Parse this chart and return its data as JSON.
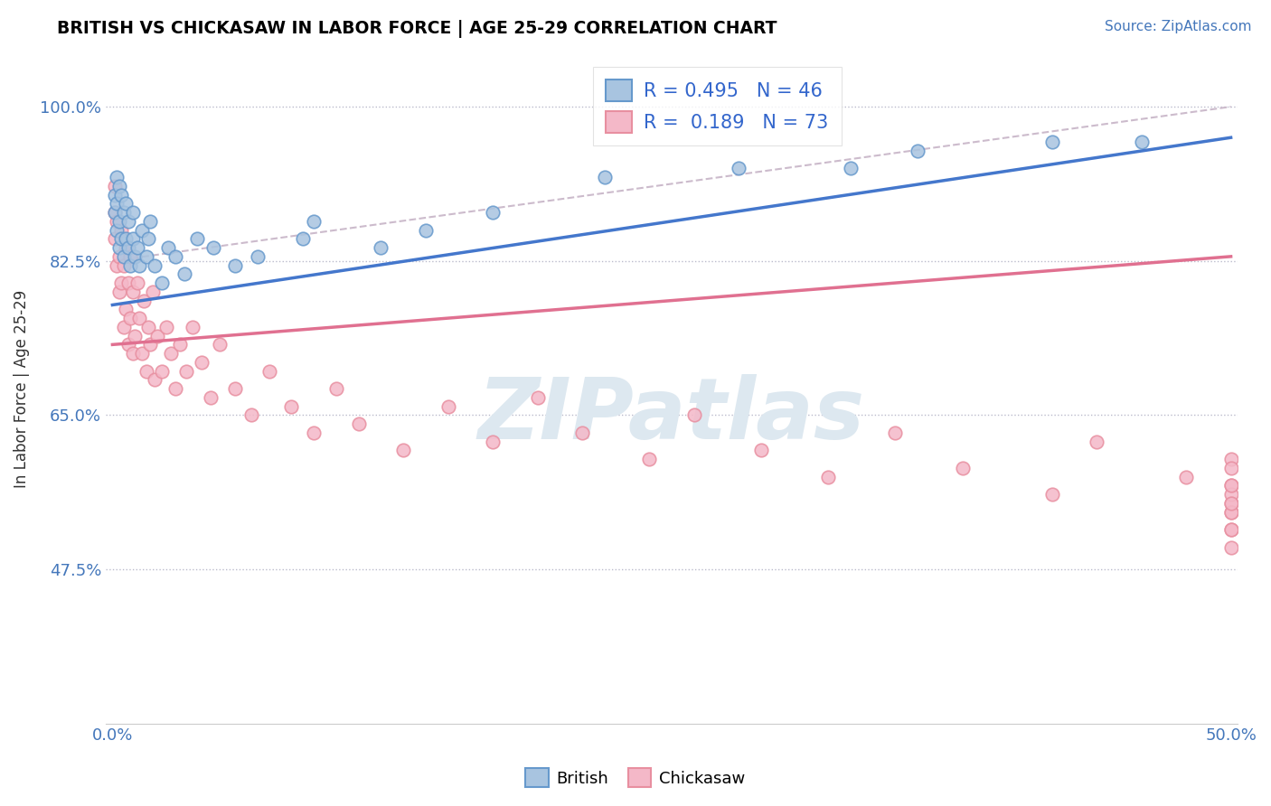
{
  "title": "BRITISH VS CHICKASAW IN LABOR FORCE | AGE 25-29 CORRELATION CHART",
  "source": "Source: ZipAtlas.com",
  "ylabel": "In Labor Force | Age 25-29",
  "british_R": 0.495,
  "british_N": 46,
  "chickasaw_R": 0.189,
  "chickasaw_N": 73,
  "blue_scatter_color": "#a8c4e0",
  "blue_edge_color": "#6699cc",
  "pink_scatter_color": "#f4b8c8",
  "pink_edge_color": "#e88fa0",
  "blue_line_color": "#4477cc",
  "pink_line_color": "#e07090",
  "diag_color": "#ccbbcc",
  "watermark": "ZIPatlas",
  "watermark_color": "#dde8f0",
  "xlim_low": -0.003,
  "xlim_high": 0.503,
  "ylim_low": 0.3,
  "ylim_high": 1.06,
  "y_ticks": [
    0.475,
    0.65,
    0.825,
    1.0
  ],
  "y_tick_labels": [
    "47.5%",
    "65.0%",
    "82.5%",
    "100.0%"
  ],
  "x_ticks": [
    0.0,
    0.1,
    0.2,
    0.3,
    0.4,
    0.5
  ],
  "x_tick_labels": [
    "0.0%",
    "",
    "",
    "",
    "",
    "50.0%"
  ],
  "british_x": [
    0.001,
    0.001,
    0.002,
    0.002,
    0.002,
    0.003,
    0.003,
    0.003,
    0.004,
    0.004,
    0.005,
    0.005,
    0.006,
    0.006,
    0.007,
    0.007,
    0.008,
    0.009,
    0.009,
    0.01,
    0.011,
    0.012,
    0.013,
    0.015,
    0.016,
    0.017,
    0.019,
    0.022,
    0.025,
    0.028,
    0.032,
    0.038,
    0.045,
    0.055,
    0.065,
    0.085,
    0.09,
    0.12,
    0.14,
    0.17,
    0.22,
    0.28,
    0.33,
    0.36,
    0.42,
    0.46
  ],
  "british_y": [
    0.88,
    0.9,
    0.86,
    0.89,
    0.92,
    0.84,
    0.87,
    0.91,
    0.85,
    0.9,
    0.83,
    0.88,
    0.85,
    0.89,
    0.84,
    0.87,
    0.82,
    0.85,
    0.88,
    0.83,
    0.84,
    0.82,
    0.86,
    0.83,
    0.85,
    0.87,
    0.82,
    0.8,
    0.84,
    0.83,
    0.81,
    0.85,
    0.84,
    0.82,
    0.83,
    0.85,
    0.87,
    0.84,
    0.86,
    0.88,
    0.92,
    0.93,
    0.93,
    0.95,
    0.96,
    0.96
  ],
  "chickasaw_x": [
    0.001,
    0.001,
    0.001,
    0.002,
    0.002,
    0.003,
    0.003,
    0.004,
    0.004,
    0.005,
    0.005,
    0.006,
    0.006,
    0.007,
    0.007,
    0.008,
    0.008,
    0.009,
    0.009,
    0.01,
    0.011,
    0.012,
    0.013,
    0.014,
    0.015,
    0.016,
    0.017,
    0.018,
    0.019,
    0.02,
    0.022,
    0.024,
    0.026,
    0.028,
    0.03,
    0.033,
    0.036,
    0.04,
    0.044,
    0.048,
    0.055,
    0.062,
    0.07,
    0.08,
    0.09,
    0.1,
    0.11,
    0.13,
    0.15,
    0.17,
    0.19,
    0.21,
    0.24,
    0.26,
    0.29,
    0.32,
    0.35,
    0.38,
    0.42,
    0.44,
    0.48,
    0.5,
    0.5,
    0.5,
    0.5,
    0.5,
    0.5,
    0.5,
    0.5,
    0.5,
    0.5,
    0.5,
    0.5
  ],
  "chickasaw_y": [
    0.85,
    0.88,
    0.91,
    0.82,
    0.87,
    0.79,
    0.83,
    0.8,
    0.86,
    0.75,
    0.82,
    0.77,
    0.84,
    0.73,
    0.8,
    0.76,
    0.83,
    0.72,
    0.79,
    0.74,
    0.8,
    0.76,
    0.72,
    0.78,
    0.7,
    0.75,
    0.73,
    0.79,
    0.69,
    0.74,
    0.7,
    0.75,
    0.72,
    0.68,
    0.73,
    0.7,
    0.75,
    0.71,
    0.67,
    0.73,
    0.68,
    0.65,
    0.7,
    0.66,
    0.63,
    0.68,
    0.64,
    0.61,
    0.66,
    0.62,
    0.67,
    0.63,
    0.6,
    0.65,
    0.61,
    0.58,
    0.63,
    0.59,
    0.56,
    0.62,
    0.58,
    0.55,
    0.6,
    0.57,
    0.54,
    0.59,
    0.56,
    0.52,
    0.57,
    0.54,
    0.5,
    0.55,
    0.52
  ]
}
